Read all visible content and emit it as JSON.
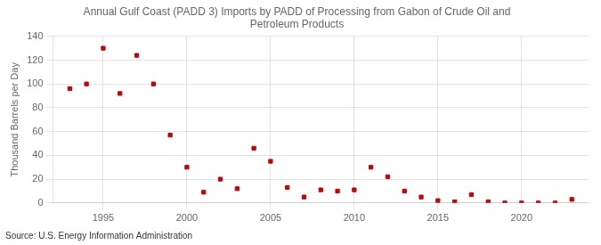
{
  "chart_data": {
    "type": "scatter",
    "title": "Annual Gulf Coast (PADD 3) Imports by PADD of Processing from Gabon of Crude Oil and\nPetroleum Products",
    "ylabel": "Thousand Barrels per Day",
    "annotations": [
      "Source: U.S. Energy Information Administration"
    ],
    "x": [
      1993,
      1994,
      1995,
      1996,
      1997,
      1998,
      1999,
      2000,
      2001,
      2002,
      2003,
      2004,
      2005,
      2006,
      2007,
      2008,
      2009,
      2010,
      2011,
      2012,
      2013,
      2014,
      2015,
      2016,
      2017,
      2018,
      2019,
      2020,
      2021,
      2022,
      2023
    ],
    "values": [
      96,
      100,
      130,
      92,
      124,
      100,
      57,
      30,
      9,
      20,
      12,
      46,
      35,
      13,
      5,
      11,
      10,
      11,
      30,
      22,
      10,
      5,
      2,
      1,
      7,
      1,
      0,
      0,
      0,
      0,
      3
    ],
    "color": "#cc0000",
    "marker": "square",
    "xlim": [
      1992,
      2024
    ],
    "ylim": [
      0,
      140
    ],
    "xticks": [
      1995,
      2000,
      2005,
      2010,
      2015,
      2020
    ],
    "yticks": [
      0,
      20,
      40,
      60,
      80,
      100,
      120,
      140
    ],
    "grid": true
  }
}
